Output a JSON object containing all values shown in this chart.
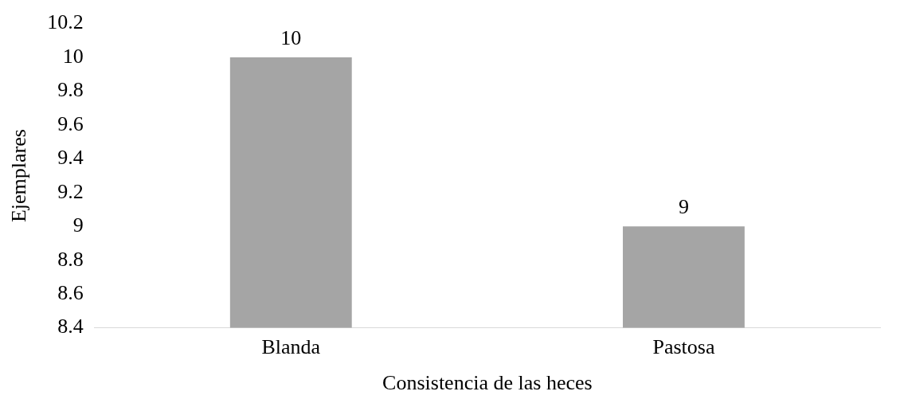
{
  "chart_data": {
    "type": "bar",
    "xlabel": "Consistencia de las heces",
    "ylabel": "Ejemplares",
    "categories": [
      "Blanda",
      "Pastosa"
    ],
    "values": [
      10,
      9
    ],
    "color": "#a5a5a5",
    "ylim": [
      8.4,
      10.2
    ],
    "yticks": [
      8.4,
      8.6,
      8.8,
      9,
      9.2,
      9.4,
      9.6,
      9.8,
      10,
      10.2
    ],
    "data_labels": true,
    "grid": false,
    "legend": false
  }
}
